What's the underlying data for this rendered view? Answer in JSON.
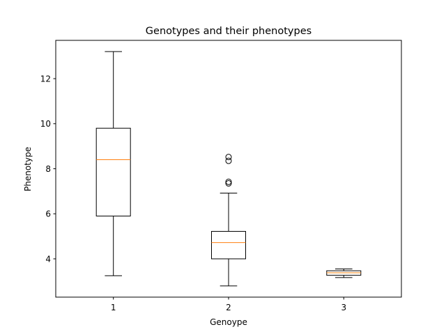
{
  "chart_data": {
    "type": "box",
    "title": "Genotypes and their phenotypes",
    "xlabel": "Genoype",
    "ylabel": "Phenotype",
    "categories": [
      "1",
      "2",
      "3"
    ],
    "ylim": [
      2.3,
      13.7
    ],
    "yticks": [
      4,
      6,
      8,
      10,
      12
    ],
    "grid": false,
    "boxes": [
      {
        "category": "1",
        "whisker_low": 3.25,
        "q1": 5.9,
        "median": 8.4,
        "q3": 9.8,
        "whisker_high": 13.2,
        "outliers": []
      },
      {
        "category": "2",
        "whisker_low": 2.8,
        "q1": 4.0,
        "median": 4.72,
        "q3": 5.22,
        "whisker_high": 6.92,
        "outliers": [
          7.35,
          7.42,
          8.35,
          8.52
        ]
      },
      {
        "category": "3",
        "whisker_low": 3.17,
        "q1": 3.27,
        "median": 3.38,
        "q3": 3.47,
        "whisker_high": 3.55,
        "outliers": []
      }
    ],
    "colors": {
      "box": "#000000",
      "median": "#ff7f0e",
      "background": "#ffffff"
    }
  }
}
